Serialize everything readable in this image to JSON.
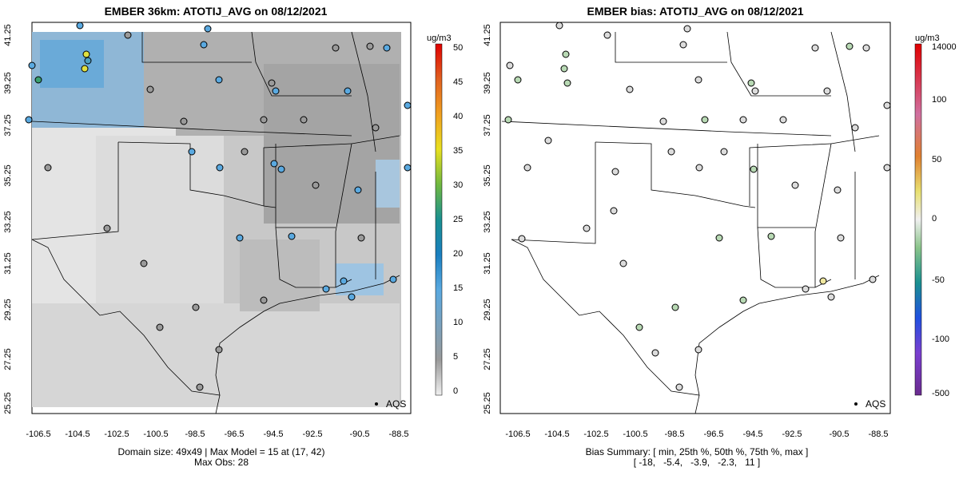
{
  "left": {
    "title": "EMBER 36km: ATOTIJ_AVG on 08/12/2021",
    "unit": "ug/m3",
    "legend_ticks": [
      "0",
      "5",
      "10",
      "15",
      "20",
      "25",
      "30",
      "35",
      "40",
      "45",
      "50"
    ],
    "footer_line1": "Domain size: 49x49 | Max Model = 15 at (17, 42)",
    "footer_line2": "Max Obs: 28",
    "obs_label": "AQS"
  },
  "right": {
    "title": "EMBER bias: ATOTIJ_AVG on 08/12/2021",
    "unit": "ug/m3",
    "legend_ticks": [
      "-500",
      "-100",
      "-50",
      "0",
      "50",
      "100",
      "14000"
    ],
    "footer_line1": "Bias Summary: [ min, 25th %, 50th %, 75th %, max ]",
    "footer_line2": "[ -18,   -5.4,   -3.9,   -2.3,   11 ]",
    "obs_label": "AQS"
  },
  "axes": {
    "lon_ticks": [
      "-106.5",
      "-104.5",
      "-102.5",
      "-100.5",
      "-98.5",
      "-96.5",
      "-94.5",
      "-92.5",
      "-90.5",
      "-88.5"
    ],
    "lat_ticks": [
      "41.25",
      "39.25",
      "37.25",
      "35.25",
      "33.25",
      "31.25",
      "29.25",
      "27.25",
      "25.25"
    ]
  },
  "colors": {
    "obs_low": "#9a9a9a",
    "obs_blue": "#5aa9e0",
    "obs_high": "#e0e040",
    "bias_neutral": "#dcdcdc",
    "bias_green": "#b8d9b4"
  }
}
